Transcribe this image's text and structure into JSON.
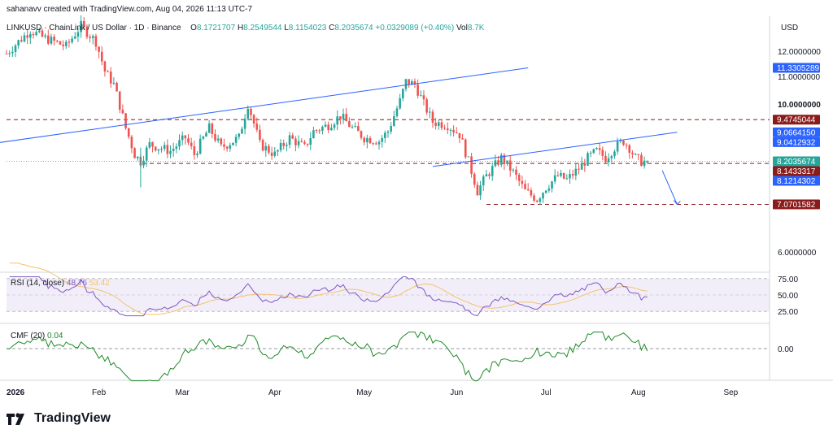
{
  "header": {
    "credit": "sahanavv created with TradingView.com, Aug 04, 2026 11:13 UTC-7",
    "symbol": "LINKUSD · ChainLink / US Dollar · 1D · Binance",
    "o_label": "O",
    "o_value": "8.1721707",
    "h_label": "H",
    "h_value": "8.2549544",
    "l_label": "L",
    "l_value": "8.1154023",
    "c_label": "C",
    "c_value": "8.2035674",
    "change": "+0.0329089 (+0.40%)",
    "vol_label": "Vol",
    "vol_value": "8.7K"
  },
  "currency": "USD",
  "footer": {
    "brand": "TradingView"
  },
  "colors": {
    "up": "#26a69a",
    "down": "#ef5350",
    "trend": "#2962ff",
    "dashed": "#8b1a1a",
    "rsi": "#7e57c2",
    "rsi_ma": "#f5c26b",
    "cmf": "#1e8a27"
  },
  "chart_data": [
    {
      "type": "candlestick",
      "title": "LINKUSD · ChainLink / US Dollar · 1D · Binance",
      "scale": "log",
      "ylim": [
        5.5,
        13.0
      ],
      "y_ticks": [
        {
          "value": 12.0,
          "label": "12.0000000"
        },
        {
          "value": 11.0,
          "label": "11.0000000"
        },
        {
          "value": 10.0,
          "label": "10.0000000"
        },
        {
          "value": 6.0,
          "label": "6.0000000"
        }
      ],
      "x_ticks": [
        "2026",
        "Feb",
        "Mar",
        "Apr",
        "May",
        "Jun",
        "Jul",
        "Aug",
        "Sep"
      ],
      "x_tick_days": [
        0,
        31,
        59,
        90,
        120,
        151,
        181,
        212,
        243
      ],
      "price_labels": [
        {
          "label": "11.3305289",
          "value": 11.3305289,
          "color": "#2962ff"
        },
        {
          "label": "9.4745044",
          "value": 9.4745044,
          "color": "#8b1a1a"
        },
        {
          "label": "9.0664150",
          "value": 9.066415,
          "color": "#2962ff"
        },
        {
          "label": "9.0412932",
          "value": 9.0412932,
          "color": "#2962ff"
        },
        {
          "label": "8.2035674",
          "value": 8.2035674,
          "color": "#26a69a"
        },
        {
          "label": "8.1433317",
          "value": 8.1433317,
          "color": "#8b1a1a"
        },
        {
          "label": "8.1214302",
          "value": 8.1214302,
          "color": "#2962ff"
        },
        {
          "label": "7.0701582",
          "value": 7.0701582,
          "color": "#8b1a1a"
        }
      ],
      "levels": [
        9.4745044,
        8.1433317,
        7.0701582
      ],
      "trendlines": [
        {
          "from": [
            -5,
            8.72
          ],
          "to": [
            175,
            11.33
          ]
        },
        {
          "from": [
            143,
            8.06
          ],
          "to": [
            225,
            9.07
          ]
        }
      ],
      "arrow": {
        "from": [
          220,
          7.95
        ],
        "to": [
          225,
          7.07
        ]
      },
      "keypoints": [
        [
          0,
          11.9
        ],
        [
          8,
          12.9
        ],
        [
          12,
          12.6
        ],
        [
          20,
          12.2
        ],
        [
          25,
          13.1
        ],
        [
          30,
          12.4
        ],
        [
          33,
          11.2
        ],
        [
          36,
          10.7
        ],
        [
          40,
          9.2
        ],
        [
          43,
          8.4
        ],
        [
          45,
          8.2
        ],
        [
          48,
          8.7
        ],
        [
          55,
          8.5
        ],
        [
          60,
          8.9
        ],
        [
          63,
          8.4
        ],
        [
          68,
          9.2
        ],
        [
          72,
          8.6
        ],
        [
          78,
          8.9
        ],
        [
          81,
          10.0
        ],
        [
          85,
          8.7
        ],
        [
          90,
          8.4
        ],
        [
          95,
          8.9
        ],
        [
          100,
          8.6
        ],
        [
          103,
          9.1
        ],
        [
          108,
          9.3
        ],
        [
          112,
          9.6
        ],
        [
          116,
          9.2
        ],
        [
          120,
          8.9
        ],
        [
          125,
          8.8
        ],
        [
          128,
          9.1
        ],
        [
          132,
          10.1
        ],
        [
          134,
          10.8
        ],
        [
          137,
          10.7
        ],
        [
          140,
          10.0
        ],
        [
          143,
          9.4
        ],
        [
          148,
          9.3
        ],
        [
          152,
          9.0
        ],
        [
          155,
          8.2
        ],
        [
          158,
          7.4
        ],
        [
          161,
          7.8
        ],
        [
          163,
          8.0
        ],
        [
          166,
          8.3
        ],
        [
          170,
          7.9
        ],
        [
          174,
          7.4
        ],
        [
          178,
          7.2
        ],
        [
          181,
          7.5
        ],
        [
          185,
          7.8
        ],
        [
          188,
          7.7
        ],
        [
          192,
          8.0
        ],
        [
          195,
          8.3
        ],
        [
          198,
          8.5
        ],
        [
          201,
          8.3
        ],
        [
          204,
          8.6
        ],
        [
          207,
          8.8
        ],
        [
          209,
          8.6
        ],
        [
          211,
          8.3
        ],
        [
          213,
          8.2
        ],
        [
          215,
          8.2
        ]
      ]
    },
    {
      "type": "line",
      "title": "RSI (14, close)",
      "series": [
        {
          "name": "RSI",
          "last": "48.76"
        },
        {
          "name": "RSI MA",
          "last": "53.42"
        }
      ],
      "y_ticks": [
        {
          "value": 75,
          "label": "75.00"
        },
        {
          "value": 50,
          "label": "50.00"
        },
        {
          "value": 25,
          "label": "25.00"
        }
      ],
      "ylim": [
        20,
        78
      ]
    },
    {
      "type": "line",
      "title": "CMF (20)",
      "series": [
        {
          "name": "CMF",
          "last": "0.04"
        }
      ],
      "y_ticks": [
        {
          "value": 0,
          "label": "0.00"
        }
      ],
      "ylim": [
        -0.4,
        0.25
      ]
    }
  ]
}
